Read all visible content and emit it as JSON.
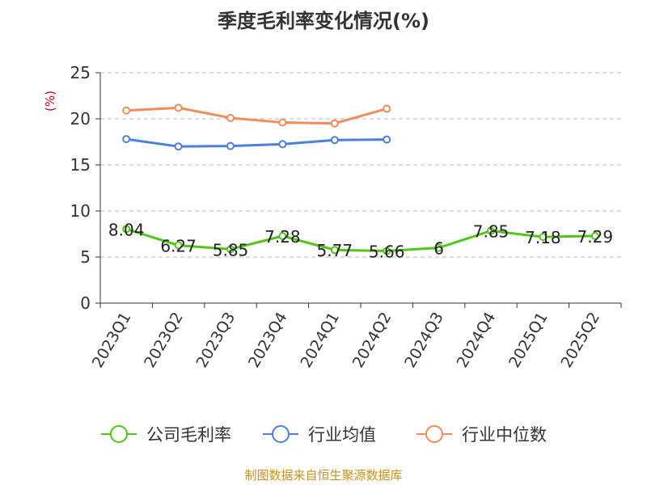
{
  "chart_data": {
    "type": "line",
    "title": "季度毛利率变化情况(%)",
    "unit_label": "(%)",
    "categories": [
      "2023Q1",
      "2023Q2",
      "2023Q3",
      "2023Q4",
      "2024Q1",
      "2024Q2",
      "2024Q3",
      "2024Q4",
      "2025Q1",
      "2025Q2"
    ],
    "ylim": [
      0,
      25
    ],
    "yticks": [
      0,
      5,
      10,
      15,
      20,
      25
    ],
    "grid": true,
    "legend_position": "bottom",
    "series": [
      {
        "name": "公司毛利率",
        "color": "#52c41a",
        "values": [
          8.04,
          6.27,
          5.85,
          7.28,
          5.77,
          5.66,
          6,
          7.85,
          7.18,
          7.29
        ],
        "labels": [
          "8.04",
          "6.27",
          "5.85",
          "7.28",
          "5.77",
          "5.66",
          "6",
          "7.85",
          "7.18",
          "7.29"
        ]
      },
      {
        "name": "行业均值",
        "color": "#4a7fdc",
        "values": [
          17.8,
          17.0,
          17.05,
          17.25,
          17.7,
          17.75,
          null,
          null,
          null,
          null
        ]
      },
      {
        "name": "行业中位数",
        "color": "#f28c5c",
        "values": [
          20.9,
          21.2,
          20.1,
          19.6,
          19.5,
          21.1,
          null,
          null,
          null,
          null
        ]
      }
    ],
    "source": "制图数据来自恒生聚源数据库"
  }
}
